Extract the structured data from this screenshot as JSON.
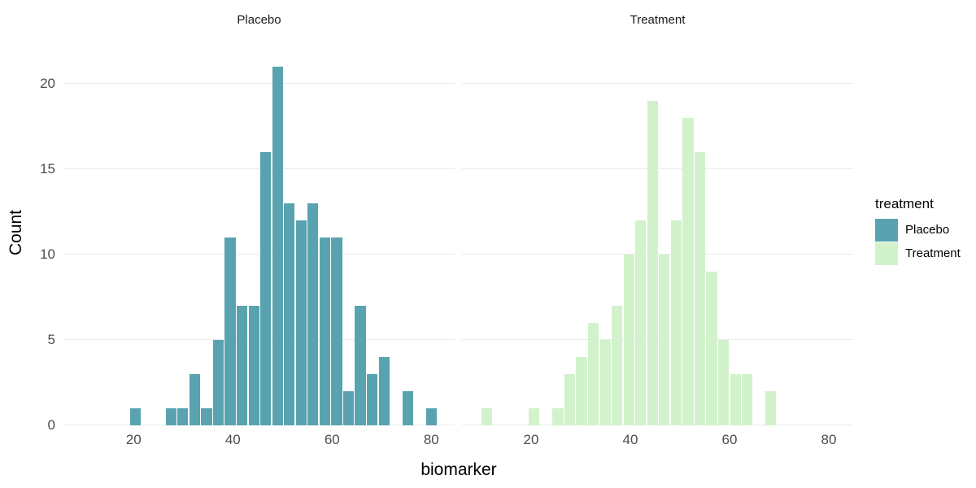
{
  "figure": {
    "facets": [
      {
        "label": "Placebo"
      },
      {
        "label": "Treatment"
      }
    ],
    "x_axis": {
      "title": "biomarker",
      "ticks": [
        20,
        40,
        60,
        80
      ]
    },
    "y_axis": {
      "title": "Count",
      "ticks": [
        0,
        5,
        10,
        15,
        20
      ]
    },
    "legend": {
      "title": "treatment",
      "items": [
        {
          "label": "Placebo",
          "color": "#59A3B0"
        },
        {
          "label": "Treatment",
          "color": "#D1F2CA"
        }
      ]
    }
  },
  "chart_data": {
    "type": "bar",
    "subtype": "faceted-histogram",
    "title": "",
    "xlabel": "biomarker",
    "ylabel": "Count",
    "facet_variable": "treatment",
    "x_ticks": [
      20,
      40,
      60,
      80
    ],
    "y_ticks": [
      0,
      5,
      10,
      15,
      20
    ],
    "xlim": [
      6,
      85
    ],
    "ylim": [
      0,
      22
    ],
    "bin_width": 2.384,
    "grid": "horizontal-major-only",
    "legend_position": "right",
    "series": [
      {
        "name": "Placebo",
        "color": "#59A3B0",
        "first_bin_center": 20.4,
        "counts": [
          1,
          0,
          0,
          1,
          1,
          3,
          1,
          5,
          11,
          7,
          7,
          16,
          21,
          13,
          12,
          13,
          11,
          11,
          2,
          7,
          3,
          4,
          0,
          2,
          0,
          1
        ]
      },
      {
        "name": "Treatment",
        "color": "#D1F2CA",
        "first_bin_center": 11.1,
        "counts": [
          1,
          0,
          0,
          0,
          1,
          0,
          1,
          3,
          4,
          6,
          5,
          7,
          10,
          12,
          19,
          10,
          12,
          18,
          16,
          9,
          5,
          3,
          3,
          0,
          2
        ]
      }
    ]
  }
}
